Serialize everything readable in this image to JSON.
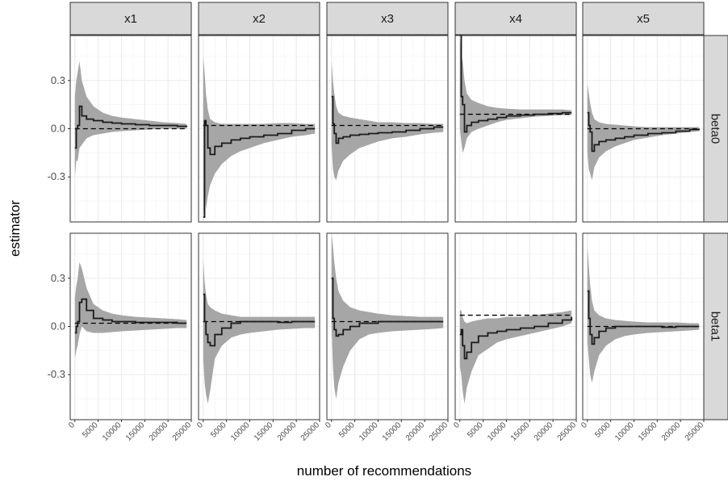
{
  "chart_data": {
    "type": "line",
    "xlabel": "number of recommendations",
    "ylabel": "estimator",
    "xlim": [
      -1000,
      25000
    ],
    "ylim": [
      -0.58,
      0.58
    ],
    "x_ticks": [
      0,
      5000,
      10000,
      15000,
      20000,
      25000
    ],
    "x_tick_labels": [
      "0",
      "5000",
      "10000",
      "15000",
      "20000",
      "25000"
    ],
    "y_ticks": [
      -0.3,
      0.0,
      0.3
    ],
    "y_tick_labels": [
      "-0.3",
      "0.0",
      "0.3"
    ],
    "columns": [
      "x1",
      "x2",
      "x3",
      "x4",
      "x5"
    ],
    "rows": [
      "beta0",
      "beta1"
    ],
    "grid": true,
    "colors": {
      "band": "#a6a6a6",
      "line": "#1a1a1a",
      "strip_fill": "#d9d9d9",
      "grid": "#ebebeb"
    },
    "panels": [
      {
        "row": "beta0",
        "col": "x1",
        "true_value": 0.0,
        "x": [
          0,
          300,
          600,
          1000,
          1500,
          2500,
          4000,
          6000,
          8000,
          10000,
          13000,
          16000,
          19000,
          22000,
          24000
        ],
        "estimate": [
          -0.12,
          0.0,
          0.02,
          0.14,
          0.08,
          0.06,
          0.05,
          0.04,
          0.035,
          0.03,
          0.025,
          0.02,
          0.02,
          0.015,
          0.01
        ],
        "lower": [
          -0.3,
          -0.2,
          -0.2,
          -0.12,
          -0.1,
          -0.06,
          -0.04,
          -0.03,
          -0.02,
          -0.015,
          -0.01,
          -0.005,
          0.0,
          0.0,
          0.0
        ],
        "upper": [
          0.2,
          0.3,
          0.35,
          0.42,
          0.3,
          0.2,
          0.14,
          0.1,
          0.08,
          0.07,
          0.06,
          0.05,
          0.04,
          0.035,
          0.03
        ]
      },
      {
        "row": "beta0",
        "col": "x2",
        "true_value": 0.02,
        "x": [
          0,
          300,
          600,
          1000,
          1500,
          2500,
          4000,
          6000,
          8000,
          10000,
          13000,
          16000,
          19000,
          22000,
          24000
        ],
        "estimate": [
          -0.55,
          0.05,
          0.02,
          -0.12,
          -0.16,
          -0.11,
          -0.09,
          -0.07,
          -0.06,
          -0.05,
          -0.04,
          -0.03,
          -0.01,
          0.0,
          0.0
        ],
        "lower": [
          -0.6,
          -0.35,
          -0.5,
          -0.42,
          -0.35,
          -0.28,
          -0.22,
          -0.17,
          -0.14,
          -0.12,
          -0.09,
          -0.07,
          -0.05,
          -0.04,
          -0.03
        ],
        "upper": [
          0.45,
          0.35,
          0.22,
          0.12,
          0.06,
          0.04,
          0.03,
          0.03,
          0.03,
          0.03,
          0.03,
          0.035,
          0.035,
          0.03,
          0.03
        ]
      },
      {
        "row": "beta0",
        "col": "x3",
        "true_value": 0.02,
        "x": [
          0,
          300,
          600,
          1000,
          1500,
          2500,
          4000,
          6000,
          8000,
          10000,
          13000,
          16000,
          19000,
          22000,
          24000
        ],
        "estimate": [
          0.2,
          0.03,
          -0.03,
          -0.09,
          -0.06,
          -0.05,
          -0.04,
          -0.035,
          -0.03,
          -0.025,
          -0.02,
          -0.01,
          0.0,
          0.01,
          0.01
        ],
        "lower": [
          -0.1,
          -0.25,
          -0.3,
          -0.32,
          -0.26,
          -0.2,
          -0.16,
          -0.12,
          -0.1,
          -0.08,
          -0.06,
          -0.05,
          -0.035,
          -0.025,
          -0.02
        ],
        "upper": [
          0.42,
          0.3,
          0.22,
          0.14,
          0.1,
          0.08,
          0.07,
          0.06,
          0.05,
          0.04,
          0.04,
          0.035,
          0.035,
          0.03,
          0.03
        ]
      },
      {
        "row": "beta0",
        "col": "x4",
        "true_value": 0.09,
        "x": [
          0,
          300,
          600,
          1000,
          1500,
          2500,
          4000,
          6000,
          8000,
          10000,
          13000,
          16000,
          19000,
          22000,
          24000
        ],
        "estimate": [
          0.58,
          0.2,
          0.15,
          -0.02,
          0.02,
          0.04,
          0.05,
          0.06,
          0.07,
          0.08,
          0.085,
          0.09,
          0.095,
          0.1,
          0.1
        ],
        "lower": [
          0.0,
          -0.08,
          -0.15,
          -0.12,
          -0.06,
          -0.02,
          0.0,
          0.02,
          0.04,
          0.055,
          0.065,
          0.075,
          0.08,
          0.085,
          0.085
        ],
        "upper": [
          0.58,
          0.45,
          0.42,
          0.3,
          0.22,
          0.18,
          0.16,
          0.14,
          0.13,
          0.125,
          0.12,
          0.12,
          0.12,
          0.12,
          0.115
        ]
      },
      {
        "row": "beta0",
        "col": "x5",
        "true_value": 0.0,
        "x": [
          0,
          300,
          600,
          1000,
          1500,
          2500,
          4000,
          6000,
          8000,
          10000,
          13000,
          16000,
          19000,
          22000,
          24000
        ],
        "estimate": [
          0.1,
          0.02,
          -0.02,
          -0.14,
          -0.1,
          -0.08,
          -0.07,
          -0.06,
          -0.05,
          -0.04,
          -0.03,
          -0.025,
          -0.015,
          -0.005,
          0.0
        ],
        "lower": [
          -0.15,
          -0.25,
          -0.28,
          -0.32,
          -0.24,
          -0.18,
          -0.14,
          -0.11,
          -0.09,
          -0.07,
          -0.055,
          -0.04,
          -0.03,
          -0.02,
          -0.015
        ],
        "upper": [
          0.28,
          0.22,
          0.16,
          0.1,
          0.06,
          0.04,
          0.03,
          0.025,
          0.02,
          0.015,
          0.01,
          0.01,
          0.01,
          0.01,
          0.01
        ]
      },
      {
        "row": "beta1",
        "col": "x1",
        "true_value": 0.02,
        "x": [
          0,
          300,
          600,
          1000,
          1500,
          2500,
          4000,
          6000,
          8000,
          10000,
          13000,
          16000,
          19000,
          22000,
          24000
        ],
        "estimate": [
          -0.04,
          0.0,
          0.03,
          0.15,
          0.17,
          0.1,
          0.05,
          0.04,
          0.03,
          0.03,
          0.025,
          0.025,
          0.025,
          0.02,
          0.02
        ],
        "lower": [
          -0.2,
          -0.15,
          -0.12,
          -0.05,
          0.0,
          -0.03,
          -0.04,
          -0.04,
          -0.035,
          -0.03,
          -0.025,
          -0.02,
          -0.015,
          -0.01,
          -0.01
        ],
        "upper": [
          0.18,
          0.25,
          0.3,
          0.4,
          0.36,
          0.24,
          0.14,
          0.1,
          0.08,
          0.07,
          0.06,
          0.055,
          0.05,
          0.045,
          0.04
        ]
      },
      {
        "row": "beta1",
        "col": "x2",
        "true_value": 0.03,
        "x": [
          0,
          300,
          600,
          1000,
          1500,
          2500,
          4000,
          6000,
          8000,
          10000,
          13000,
          16000,
          19000,
          22000,
          24000
        ],
        "estimate": [
          0.2,
          0.03,
          -0.05,
          -0.1,
          -0.12,
          -0.05,
          -0.01,
          0.02,
          0.03,
          0.03,
          0.03,
          0.025,
          0.03,
          0.03,
          0.03
        ],
        "lower": [
          -0.2,
          -0.35,
          -0.42,
          -0.48,
          -0.4,
          -0.2,
          -0.12,
          -0.07,
          -0.05,
          -0.04,
          -0.03,
          -0.02,
          -0.015,
          -0.01,
          -0.01
        ],
        "upper": [
          0.42,
          0.28,
          0.2,
          0.14,
          0.12,
          0.1,
          0.08,
          0.07,
          0.06,
          0.06,
          0.06,
          0.06,
          0.06,
          0.06,
          0.06
        ]
      },
      {
        "row": "beta1",
        "col": "x3",
        "true_value": 0.03,
        "x": [
          0,
          300,
          600,
          1000,
          1500,
          2500,
          4000,
          6000,
          8000,
          10000,
          13000,
          16000,
          19000,
          22000,
          24000
        ],
        "estimate": [
          0.3,
          0.05,
          -0.02,
          -0.06,
          -0.05,
          -0.02,
          0.0,
          0.02,
          0.02,
          0.03,
          0.03,
          0.03,
          0.03,
          0.03,
          0.03
        ],
        "lower": [
          0.0,
          -0.25,
          -0.38,
          -0.45,
          -0.35,
          -0.25,
          -0.15,
          -0.08,
          -0.05,
          -0.04,
          -0.03,
          -0.025,
          -0.02,
          -0.015,
          -0.01
        ],
        "upper": [
          0.58,
          0.5,
          0.4,
          0.3,
          0.22,
          0.16,
          0.12,
          0.1,
          0.09,
          0.08,
          0.07,
          0.065,
          0.06,
          0.06,
          0.06
        ]
      },
      {
        "row": "beta1",
        "col": "x4",
        "true_value": 0.07,
        "x": [
          0,
          300,
          600,
          1000,
          1500,
          2500,
          4000,
          6000,
          8000,
          10000,
          13000,
          16000,
          19000,
          22000,
          24000
        ],
        "estimate": [
          -0.05,
          -0.02,
          -0.12,
          -0.2,
          -0.16,
          -0.1,
          -0.06,
          -0.04,
          -0.03,
          -0.02,
          -0.01,
          0.0,
          0.02,
          0.04,
          0.06
        ],
        "lower": [
          -0.25,
          -0.3,
          -0.4,
          -0.48,
          -0.38,
          -0.28,
          -0.18,
          -0.14,
          -0.1,
          -0.08,
          -0.06,
          -0.04,
          -0.02,
          0.0,
          0.02
        ],
        "upper": [
          0.1,
          0.1,
          0.06,
          0.03,
          0.02,
          0.03,
          0.04,
          0.05,
          0.05,
          0.06,
          0.06,
          0.07,
          0.08,
          0.09,
          0.1
        ]
      },
      {
        "row": "beta1",
        "col": "x5",
        "true_value": 0.0,
        "x": [
          0,
          300,
          600,
          1000,
          1500,
          2500,
          4000,
          6000,
          8000,
          10000,
          13000,
          16000,
          19000,
          22000,
          24000
        ],
        "estimate": [
          0.22,
          0.05,
          -0.05,
          -0.11,
          -0.07,
          -0.03,
          -0.01,
          0.0,
          0.0,
          0.0,
          0.0,
          -0.005,
          0.0,
          0.0,
          0.0
        ],
        "lower": [
          -0.1,
          -0.2,
          -0.3,
          -0.35,
          -0.28,
          -0.18,
          -0.12,
          -0.08,
          -0.06,
          -0.05,
          -0.04,
          -0.035,
          -0.03,
          -0.025,
          -0.02
        ],
        "upper": [
          0.5,
          0.38,
          0.26,
          0.16,
          0.1,
          0.07,
          0.05,
          0.04,
          0.035,
          0.03,
          0.025,
          0.025,
          0.025,
          0.02,
          0.02
        ]
      }
    ]
  }
}
